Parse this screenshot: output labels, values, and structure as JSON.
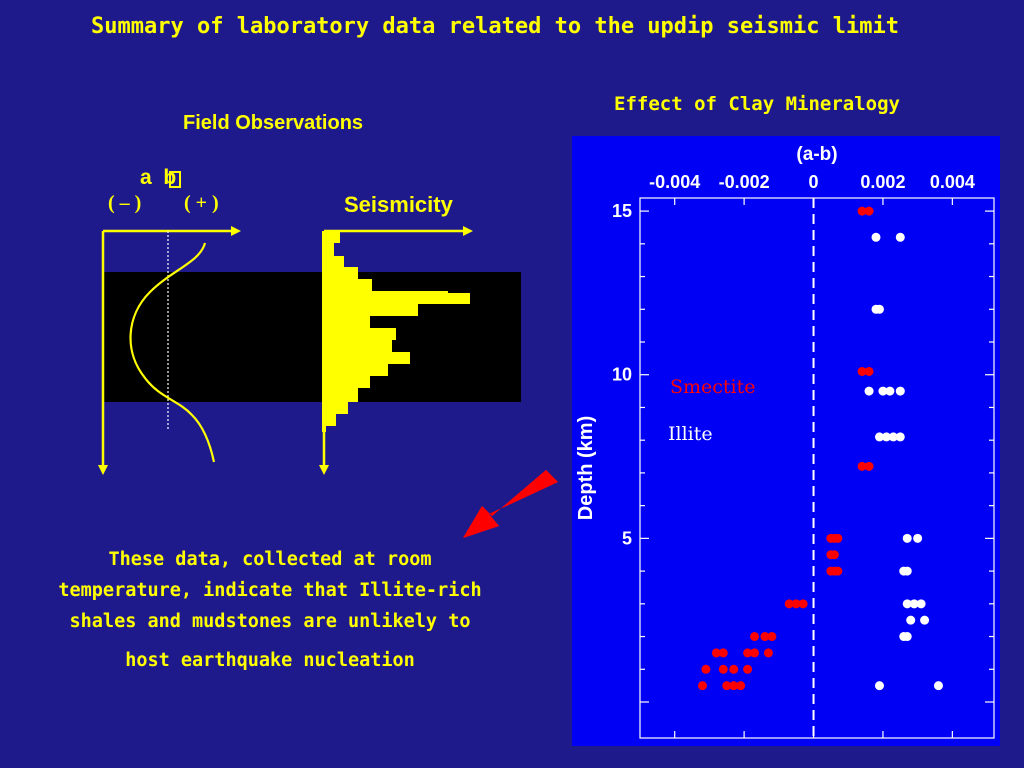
{
  "title": "Summary of laboratory data related to the updip seismic limit",
  "field_observations": {
    "heading": "Field Observations",
    "ab_label": "a  b",
    "ab_symbol": "",
    "neg_label": "( – )",
    "pos_label": "( + )",
    "seismicity_label": "Seismicity"
  },
  "clay": {
    "heading": "Effect of Clay Mineralogy",
    "legend_smectite": "Smectite",
    "legend_illite": "Illite",
    "smectite_color": "#ff0000",
    "illite_color": "#ffffff"
  },
  "note_lines": [
    "These data, collected at room",
    "temperature, indicate that Illite-rich",
    "shales and mudstones are unlikely to",
    "host earthquake nucleation"
  ],
  "chart_data": {
    "type": "scatter",
    "title": "",
    "xlabel": "(a-b)",
    "ylabel": "Depth (km)",
    "xlim": [
      -0.005,
      0.0052
    ],
    "ylim": [
      15.4,
      -1.1
    ],
    "xticks": [
      "-0.004",
      "-0.002",
      "0",
      "0.002",
      "0.004"
    ],
    "xtick_values": [
      -0.004,
      -0.002,
      0,
      0.002,
      0.004
    ],
    "yticks": [
      "5",
      "10",
      "15"
    ],
    "ytick_values": [
      5,
      10,
      15
    ],
    "reference_line": {
      "x": 0,
      "style": "dashed"
    },
    "series": [
      {
        "name": "Smectite",
        "color": "#ff0000",
        "points": [
          [
            -0.0032,
            0.5
          ],
          [
            -0.0025,
            0.5
          ],
          [
            -0.0023,
            0.5
          ],
          [
            -0.0021,
            0.5
          ],
          [
            -0.0031,
            1.0
          ],
          [
            -0.0026,
            1.0
          ],
          [
            -0.0023,
            1.0
          ],
          [
            -0.0019,
            1.0
          ],
          [
            -0.0028,
            1.5
          ],
          [
            -0.0026,
            1.5
          ],
          [
            -0.0019,
            1.5
          ],
          [
            -0.0017,
            1.5
          ],
          [
            -0.0013,
            1.5
          ],
          [
            -0.0017,
            2.0
          ],
          [
            -0.0014,
            2.0
          ],
          [
            -0.0012,
            2.0
          ],
          [
            -0.0007,
            3.0
          ],
          [
            -0.0005,
            3.0
          ],
          [
            -0.0003,
            3.0
          ],
          [
            0.0005,
            4.0
          ],
          [
            0.0006,
            4.0
          ],
          [
            0.0007,
            4.0
          ],
          [
            0.0005,
            4.5
          ],
          [
            0.0006,
            4.5
          ],
          [
            0.0005,
            5.0
          ],
          [
            0.0006,
            5.0
          ],
          [
            0.0007,
            5.0
          ],
          [
            0.0014,
            7.2
          ],
          [
            0.0016,
            7.2
          ],
          [
            0.0014,
            10.1
          ],
          [
            0.0016,
            10.1
          ],
          [
            0.0014,
            15.0
          ],
          [
            0.0016,
            15.0
          ]
        ]
      },
      {
        "name": "Illite",
        "color": "#ffffff",
        "points": [
          [
            0.0019,
            0.5
          ],
          [
            0.0036,
            0.5
          ],
          [
            0.0026,
            2.0
          ],
          [
            0.0027,
            2.0
          ],
          [
            0.0028,
            2.5
          ],
          [
            0.0032,
            2.5
          ],
          [
            0.0027,
            3.0
          ],
          [
            0.0029,
            3.0
          ],
          [
            0.0031,
            3.0
          ],
          [
            0.0026,
            4.0
          ],
          [
            0.0027,
            4.0
          ],
          [
            0.0027,
            5.0
          ],
          [
            0.003,
            5.0
          ],
          [
            0.0019,
            8.1
          ],
          [
            0.0021,
            8.1
          ],
          [
            0.0023,
            8.1
          ],
          [
            0.0025,
            8.1
          ],
          [
            0.0016,
            9.5
          ],
          [
            0.002,
            9.5
          ],
          [
            0.0022,
            9.5
          ],
          [
            0.0025,
            9.5
          ],
          [
            0.0018,
            12.0
          ],
          [
            0.0019,
            12.0
          ],
          [
            0.0018,
            14.2
          ],
          [
            0.0025,
            14.2
          ]
        ]
      }
    ]
  }
}
